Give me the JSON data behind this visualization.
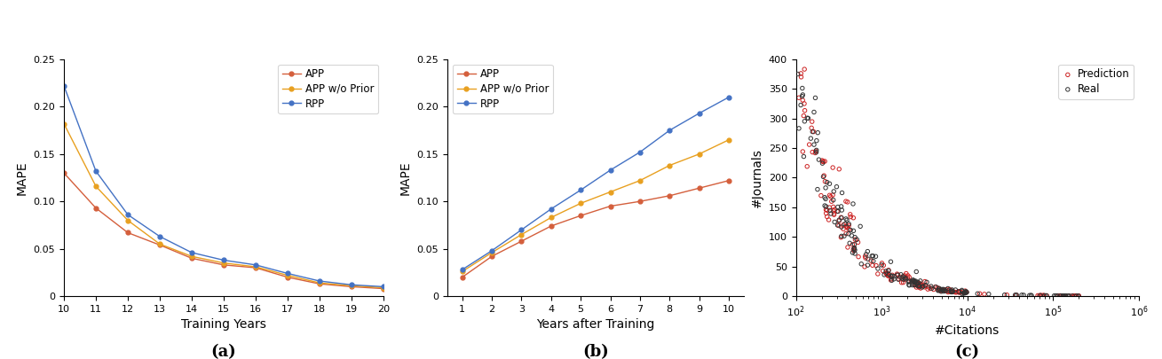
{
  "panel_a": {
    "xlabel": "Training Years",
    "ylabel": "MAPE",
    "xlim": [
      10,
      20
    ],
    "ylim": [
      0,
      0.25
    ],
    "yticks": [
      0,
      0.05,
      0.1,
      0.15,
      0.2,
      0.25
    ],
    "xticks": [
      10,
      11,
      12,
      13,
      14,
      15,
      16,
      17,
      18,
      19,
      20
    ],
    "APP": {
      "x": [
        10,
        11,
        12,
        13,
        14,
        15,
        16,
        17,
        18,
        19,
        20
      ],
      "y": [
        0.13,
        0.093,
        0.067,
        0.054,
        0.04,
        0.033,
        0.03,
        0.02,
        0.013,
        0.01,
        0.008
      ],
      "color": "#d45f3c",
      "label": "APP"
    },
    "APP_wo_Prior": {
      "x": [
        10,
        11,
        12,
        13,
        14,
        15,
        16,
        17,
        18,
        19,
        20
      ],
      "y": [
        0.182,
        0.116,
        0.08,
        0.055,
        0.042,
        0.035,
        0.031,
        0.022,
        0.014,
        0.011,
        0.009
      ],
      "color": "#e8a020",
      "label": "APP w/o Prior"
    },
    "RPP": {
      "x": [
        10,
        11,
        12,
        13,
        14,
        15,
        16,
        17,
        18,
        19,
        20
      ],
      "y": [
        0.222,
        0.132,
        0.086,
        0.063,
        0.046,
        0.038,
        0.033,
        0.024,
        0.016,
        0.012,
        0.01
      ],
      "color": "#4472c4",
      "label": "RPP"
    },
    "label": "(a)"
  },
  "panel_b": {
    "xlabel": "Years after Training",
    "ylabel": "MAPE",
    "ylim": [
      0,
      0.25
    ],
    "yticks": [
      0,
      0.05,
      0.1,
      0.15,
      0.2,
      0.25
    ],
    "xticks": [
      1,
      2,
      3,
      4,
      5,
      6,
      7,
      8,
      9,
      10
    ],
    "APP": {
      "x": [
        1,
        2,
        3,
        4,
        5,
        6,
        7,
        8,
        9,
        10
      ],
      "y": [
        0.02,
        0.042,
        0.058,
        0.074,
        0.085,
        0.095,
        0.1,
        0.106,
        0.114,
        0.122
      ],
      "color": "#d45f3c",
      "label": "APP"
    },
    "APP_wo_Prior": {
      "x": [
        1,
        2,
        3,
        4,
        5,
        6,
        7,
        8,
        9,
        10
      ],
      "y": [
        0.026,
        0.046,
        0.065,
        0.083,
        0.098,
        0.11,
        0.122,
        0.138,
        0.15,
        0.165
      ],
      "color": "#e8a020",
      "label": "APP w/o Prior"
    },
    "RPP": {
      "x": [
        1,
        2,
        3,
        4,
        5,
        6,
        7,
        8,
        9,
        10
      ],
      "y": [
        0.028,
        0.048,
        0.07,
        0.092,
        0.112,
        0.133,
        0.152,
        0.175,
        0.193,
        0.21
      ],
      "color": "#4472c4",
      "label": "RPP"
    },
    "label": "(b)"
  },
  "panel_c": {
    "xlabel": "#Citations",
    "ylabel": "#Journals",
    "ylim": [
      0,
      400
    ],
    "yticks": [
      0,
      50,
      100,
      150,
      200,
      250,
      300,
      350,
      400
    ],
    "real_color": "#333333",
    "pred_color": "#cc2222",
    "label": "(c)"
  },
  "background_color": "#ffffff",
  "tick_fontsize": 8,
  "axis_label_fontsize": 10,
  "legend_fontsize": 8.5,
  "sublabel_fontsize": 13
}
